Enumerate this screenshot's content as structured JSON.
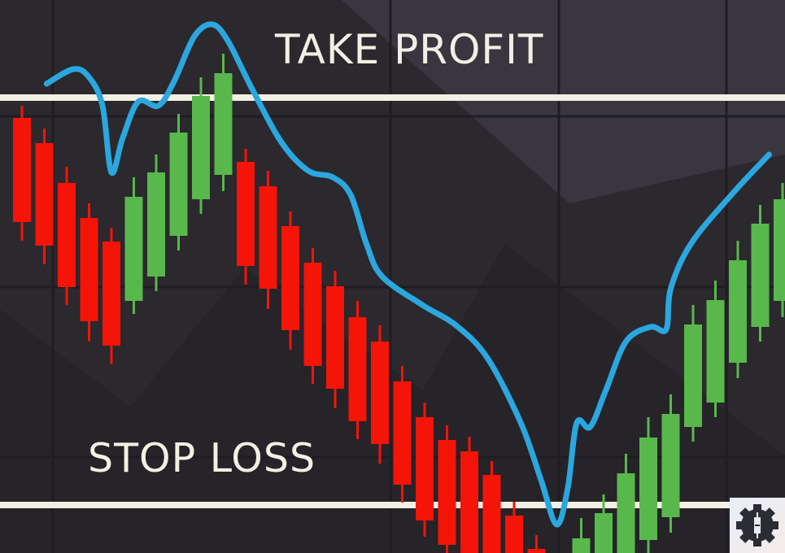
{
  "labels": {
    "take_profit": "TAKE PROFIT",
    "stop_loss": "STOP LOSS"
  },
  "colors": {
    "background": "#2b282e",
    "grid": "#1f1d22",
    "level_line": "#f4efe4",
    "bullish": "#58b84c",
    "bearish": "#f41408",
    "indicator": "#2aa7de"
  },
  "logo_icon": "gear-candlestick-icon",
  "chart_data": {
    "type": "candlestick",
    "title": "",
    "xlabel": "",
    "ylabel": "",
    "grid": true,
    "xlim": [
      -1,
      34.5
    ],
    "ylim": [
      -14,
      68
    ],
    "levels": [
      {
        "name": "TAKE PROFIT",
        "value": 56.0
      },
      {
        "name": "STOP LOSS",
        "value": 5.9
      }
    ],
    "candles": [
      {
        "x": 0,
        "o": 53.5,
        "h": 55.0,
        "l": 38.4,
        "c": 40.7
      },
      {
        "x": 1,
        "o": 50.4,
        "h": 52.2,
        "l": 35.5,
        "c": 37.8
      },
      {
        "x": 2,
        "o": 45.5,
        "h": 47.5,
        "l": 30.5,
        "c": 32.7
      },
      {
        "x": 3,
        "o": 41.2,
        "h": 43.0,
        "l": 26.0,
        "c": 28.5
      },
      {
        "x": 4,
        "o": 38.3,
        "h": 40.0,
        "l": 23.2,
        "c": 25.5
      },
      {
        "x": 5,
        "o": 31.0,
        "h": 46.2,
        "l": 29.4,
        "c": 43.8
      },
      {
        "x": 6,
        "o": 34.0,
        "h": 49.0,
        "l": 32.2,
        "c": 46.8
      },
      {
        "x": 7,
        "o": 39.0,
        "h": 54.0,
        "l": 37.2,
        "c": 51.7
      },
      {
        "x": 8,
        "o": 43.5,
        "h": 58.5,
        "l": 41.7,
        "c": 56.2
      },
      {
        "x": 9,
        "o": 46.5,
        "h": 61.4,
        "l": 44.5,
        "c": 59.0
      },
      {
        "x": 10,
        "o": 48.1,
        "h": 49.7,
        "l": 33.0,
        "c": 35.3
      },
      {
        "x": 11,
        "o": 45.1,
        "h": 47.0,
        "l": 30.0,
        "c": 32.5
      },
      {
        "x": 12,
        "o": 40.2,
        "h": 42.0,
        "l": 25.0,
        "c": 27.4
      },
      {
        "x": 13,
        "o": 35.7,
        "h": 37.5,
        "l": 20.8,
        "c": 23.0
      },
      {
        "x": 14,
        "o": 32.8,
        "h": 34.7,
        "l": 17.8,
        "c": 20.2
      },
      {
        "x": 15,
        "o": 29.0,
        "h": 31.0,
        "l": 14.0,
        "c": 16.2
      },
      {
        "x": 16,
        "o": 26.0,
        "h": 28.0,
        "l": 11.0,
        "c": 13.4
      },
      {
        "x": 17,
        "o": 21.1,
        "h": 23.0,
        "l": 6.2,
        "c": 8.4
      },
      {
        "x": 18,
        "o": 16.7,
        "h": 18.5,
        "l": 2.0,
        "c": 4.0
      },
      {
        "x": 19,
        "o": 13.9,
        "h": 15.7,
        "l": -1.0,
        "c": 1.0
      },
      {
        "x": 20,
        "o": 12.5,
        "h": 14.3,
        "l": -2.5,
        "c": -0.5
      },
      {
        "x": 21,
        "o": 9.6,
        "h": 11.3,
        "l": -5.0,
        "c": -3.0
      },
      {
        "x": 22,
        "o": 4.6,
        "h": 6.3,
        "l": -10.0,
        "c": -8.0
      },
      {
        "x": 23,
        "o": 0.5,
        "h": 2.2,
        "l": -14.0,
        "c": -12.0
      },
      {
        "x": 25,
        "o": -12.0,
        "h": 4.3,
        "l": -14.0,
        "c": 1.8
      },
      {
        "x": 26,
        "o": -8.0,
        "h": 7.2,
        "l": -10.0,
        "c": 4.9
      },
      {
        "x": 27,
        "o": -3.0,
        "h": 12.2,
        "l": -5.0,
        "c": 9.8
      },
      {
        "x": 28,
        "o": 1.6,
        "h": 16.7,
        "l": 0.0,
        "c": 14.2
      },
      {
        "x": 29,
        "o": 4.4,
        "h": 19.5,
        "l": 2.5,
        "c": 17.1
      },
      {
        "x": 30,
        "o": 15.5,
        "h": 30.5,
        "l": 13.7,
        "c": 28.1
      },
      {
        "x": 31,
        "o": 18.5,
        "h": 33.5,
        "l": 16.7,
        "c": 31.1
      },
      {
        "x": 32,
        "o": 23.4,
        "h": 38.4,
        "l": 21.5,
        "c": 36.0
      },
      {
        "x": 33,
        "o": 27.8,
        "h": 42.8,
        "l": 26.0,
        "c": 40.5
      },
      {
        "x": 34,
        "o": 31.0,
        "h": 45.5,
        "l": 29.0,
        "c": 43.5
      }
    ],
    "indicator_line": [
      [
        1.1,
        57.7
      ],
      [
        2.3,
        59.5
      ],
      [
        3.0,
        58.5
      ],
      [
        3.6,
        55.0
      ],
      [
        4.0,
        46.8
      ],
      [
        4.5,
        51.0
      ],
      [
        5.2,
        55.5
      ],
      [
        6.1,
        55.0
      ],
      [
        6.8,
        58.0
      ],
      [
        7.7,
        63.5
      ],
      [
        8.5,
        65.0
      ],
      [
        9.2,
        63.0
      ],
      [
        10.3,
        57.0
      ],
      [
        11.6,
        50.5
      ],
      [
        12.8,
        47.0
      ],
      [
        13.9,
        46.2
      ],
      [
        14.7,
        44.0
      ],
      [
        15.4,
        38.0
      ],
      [
        16.1,
        34.0
      ],
      [
        17.9,
        30.5
      ],
      [
        19.4,
        28.0
      ],
      [
        20.8,
        24.0
      ],
      [
        22.3,
        16.0
      ],
      [
        23.2,
        9.0
      ],
      [
        23.9,
        3.5
      ],
      [
        24.4,
        8.0
      ],
      [
        24.8,
        16.0
      ],
      [
        25.4,
        15.5
      ],
      [
        26.1,
        20.0
      ],
      [
        27.0,
        26.0
      ],
      [
        28.1,
        27.8
      ],
      [
        28.8,
        27.5
      ],
      [
        29.0,
        32.5
      ],
      [
        29.9,
        38.0
      ],
      [
        31.7,
        44.0
      ],
      [
        33.4,
        49.0
      ]
    ]
  }
}
